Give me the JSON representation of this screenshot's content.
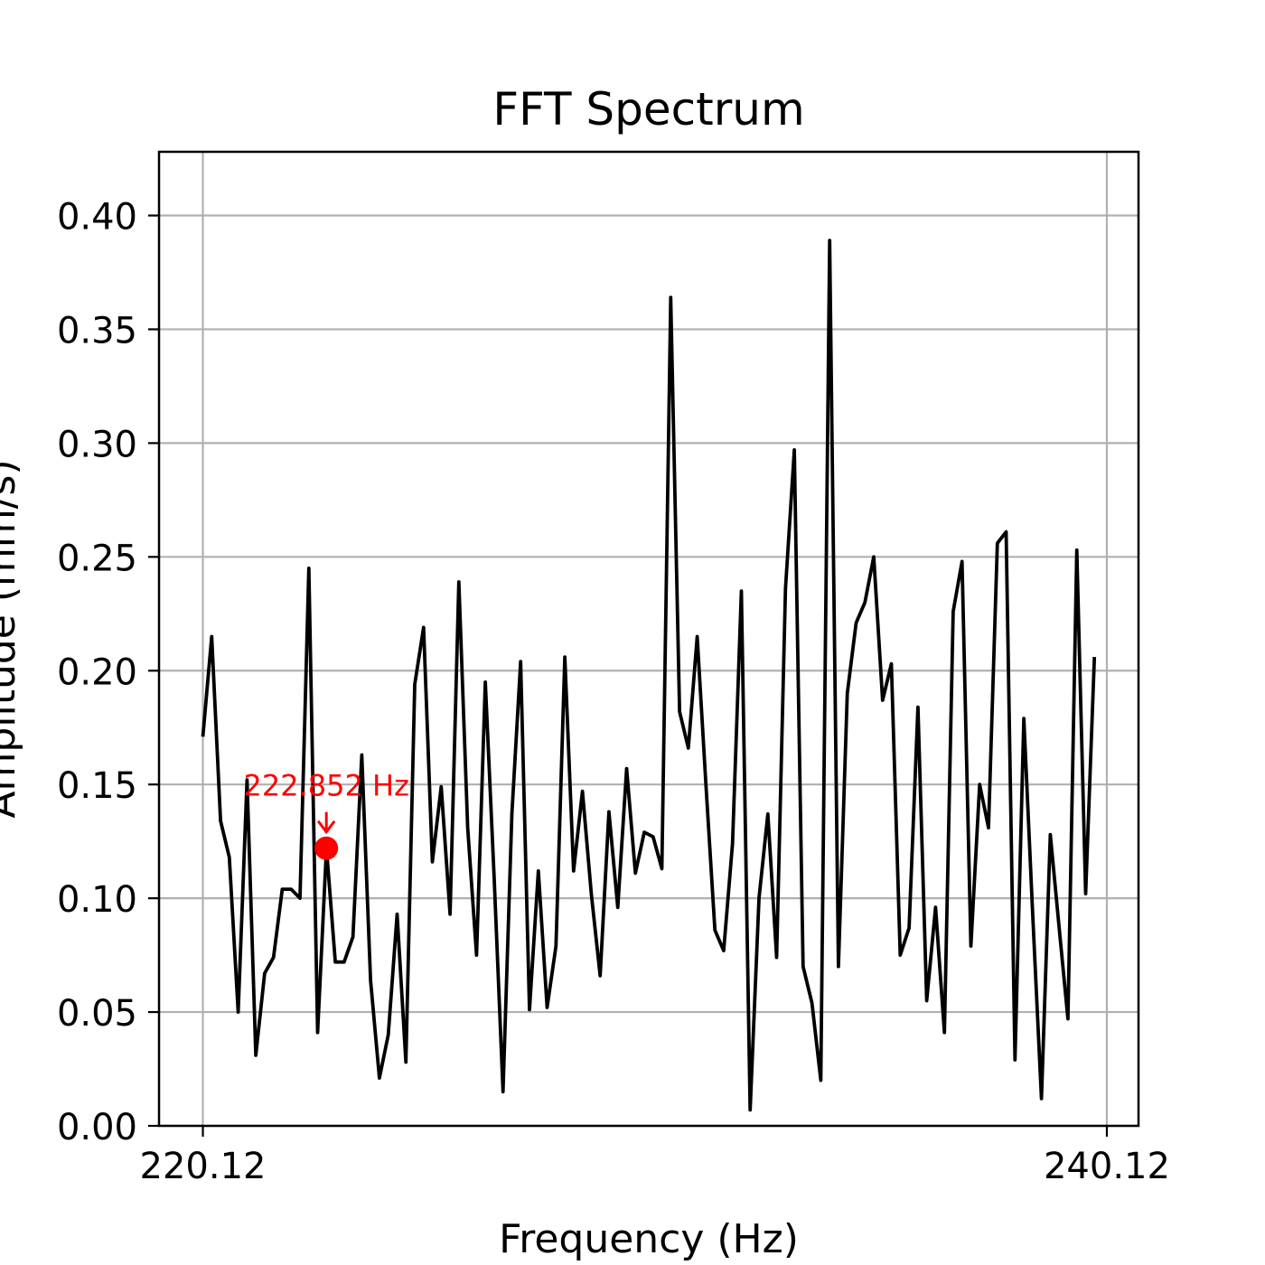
{
  "chart_data": {
    "type": "line",
    "title": "FFT Spectrum",
    "xlabel": "Frequency (Hz)",
    "ylabel": "Amplitude (mm/s)",
    "xlim": [
      219.15,
      240.82
    ],
    "ylim": [
      0.0,
      0.428
    ],
    "x_ticks": [
      "220.12",
      "240.12"
    ],
    "x_tick_values": [
      220.12,
      240.12
    ],
    "y_ticks": [
      "0.00",
      "0.05",
      "0.10",
      "0.15",
      "0.20",
      "0.25",
      "0.30",
      "0.35",
      "0.40"
    ],
    "y_tick_values": [
      0.0,
      0.05,
      0.1,
      0.15,
      0.2,
      0.25,
      0.3,
      0.35,
      0.4
    ],
    "grid": true,
    "series": [
      {
        "name": "",
        "color": "#000000",
        "x_start": 220.12,
        "x_step": 0.1953,
        "values": [
          0.171,
          0.215,
          0.134,
          0.118,
          0.05,
          0.152,
          0.031,
          0.067,
          0.074,
          0.104,
          0.104,
          0.1,
          0.245,
          0.041,
          0.122,
          0.072,
          0.072,
          0.083,
          0.163,
          0.064,
          0.021,
          0.04,
          0.093,
          0.028,
          0.194,
          0.219,
          0.116,
          0.149,
          0.093,
          0.239,
          0.131,
          0.075,
          0.195,
          0.109,
          0.015,
          0.137,
          0.204,
          0.051,
          0.112,
          0.052,
          0.079,
          0.206,
          0.112,
          0.147,
          0.102,
          0.066,
          0.138,
          0.096,
          0.157,
          0.111,
          0.129,
          0.127,
          0.113,
          0.364,
          0.182,
          0.166,
          0.215,
          0.149,
          0.086,
          0.077,
          0.124,
          0.235,
          0.007,
          0.1,
          0.137,
          0.074,
          0.236,
          0.297,
          0.07,
          0.054,
          0.02,
          0.389,
          0.07,
          0.19,
          0.221,
          0.23,
          0.25,
          0.187,
          0.203,
          0.075,
          0.087,
          0.184,
          0.055,
          0.096,
          0.041,
          0.226,
          0.248,
          0.079,
          0.15,
          0.131,
          0.256,
          0.261,
          0.029,
          0.179,
          0.093,
          0.012,
          0.128,
          0.087,
          0.047,
          0.253,
          0.102,
          0.206
        ]
      }
    ],
    "annotation": {
      "text": "222.852 Hz",
      "x": 222.852,
      "y": 0.122,
      "color": "#ff0000"
    }
  }
}
